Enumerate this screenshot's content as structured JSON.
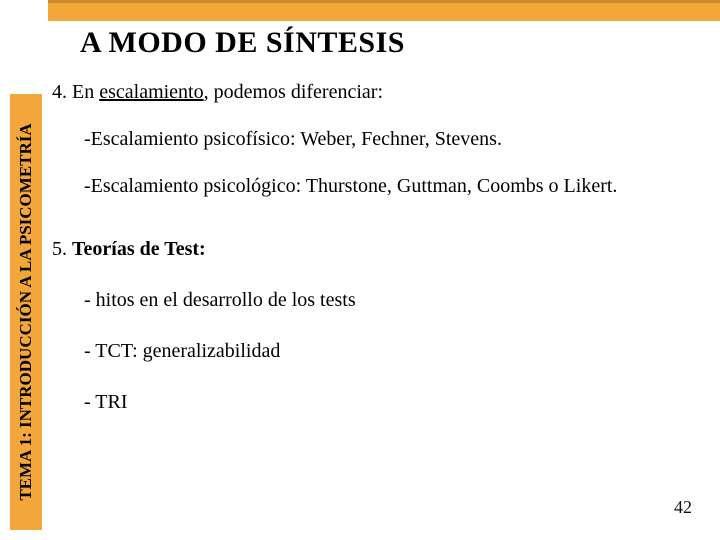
{
  "colors": {
    "orange": "#f3a63a",
    "orange_dark": "#d08a2a",
    "text": "#000000",
    "background": "#ffffff"
  },
  "sidebar": {
    "label": "TEMA 1: INTRODUCCIÓN A LA PSICOMETRÍA"
  },
  "title": "A MODO DE SÍNTESIS",
  "body": {
    "item4": {
      "prefix": "4. En ",
      "underlined": "escalamiento",
      "suffix": ", podemos diferenciar:",
      "sub": {
        "a": "-Escalamiento psicofísico: Weber, Fechner, Stevens.",
        "b": "-Escalamiento psicológico: Thurstone, Guttman, Coombs o Likert."
      }
    },
    "item5": {
      "prefix": "5. ",
      "bold": "Teorías de Test:",
      "sub": {
        "a": "- hitos en el desarrollo de los tests",
        "b": "- TCT: generalizabilidad",
        "c": "- TRI"
      }
    }
  },
  "page_number": "42"
}
